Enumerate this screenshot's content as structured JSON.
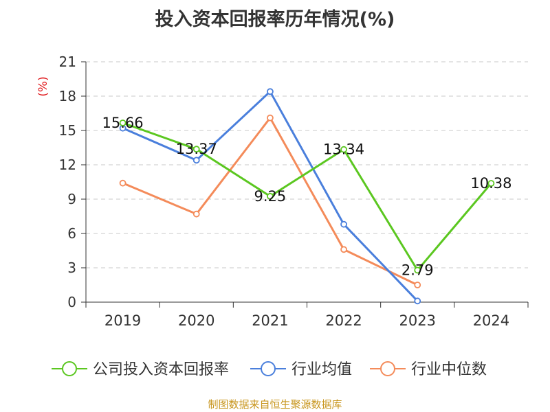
{
  "chart_data": {
    "type": "line",
    "title": "投入资本回报率历年情况(%)",
    "ylabel": "(%)",
    "xlabel": "",
    "categories": [
      "2019",
      "2020",
      "2021",
      "2022",
      "2023",
      "2024"
    ],
    "ylim": [
      0,
      21
    ],
    "yticks": [
      0,
      3,
      6,
      9,
      12,
      15,
      18,
      21
    ],
    "grid": true,
    "legend_position": "bottom",
    "series": [
      {
        "name": "公司投入资本回报率",
        "color": "#5bc720",
        "values": [
          15.66,
          13.37,
          9.25,
          13.34,
          2.79,
          10.38
        ],
        "labels": [
          "15.66",
          "13.37",
          "9.25",
          "13.34",
          "2.79",
          "10.38"
        ]
      },
      {
        "name": "行业均值",
        "color": "#4a7fdc",
        "values": [
          15.2,
          12.4,
          18.4,
          6.8,
          0.1,
          null
        ]
      },
      {
        "name": "行业中位数",
        "color": "#f48b5a",
        "values": [
          10.4,
          7.7,
          16.1,
          4.6,
          1.5,
          null
        ]
      }
    ]
  },
  "footer": {
    "source": "制图数据来自恒生聚源数据库"
  }
}
